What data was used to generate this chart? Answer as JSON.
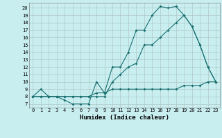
{
  "xlabel": "Humidex (Indice chaleur)",
  "bg_color": "#c8eef0",
  "grid_color": "#b0c8c8",
  "line_color": "#1a7070",
  "x_ticks": [
    0,
    1,
    2,
    3,
    4,
    5,
    6,
    7,
    8,
    9,
    10,
    11,
    12,
    13,
    14,
    15,
    16,
    17,
    18,
    19,
    20,
    21,
    22,
    23
  ],
  "y_ticks": [
    7,
    8,
    9,
    10,
    11,
    12,
    13,
    14,
    15,
    16,
    17,
    18,
    19,
    20
  ],
  "xlim": [
    -0.5,
    23.5
  ],
  "ylim": [
    6.5,
    20.7
  ],
  "line1_x": [
    0,
    1,
    2,
    3,
    4,
    5,
    6,
    7,
    8,
    9,
    10,
    11,
    12,
    13,
    14,
    15,
    16,
    17,
    18,
    19,
    20,
    21,
    22,
    23
  ],
  "line1_y": [
    8,
    9,
    8,
    8,
    7.5,
    7,
    7,
    7,
    10,
    8.5,
    12,
    12,
    14,
    17,
    17,
    19,
    20.2,
    20,
    20.2,
    19,
    17.5,
    15,
    12,
    10
  ],
  "line2_x": [
    0,
    1,
    2,
    3,
    4,
    5,
    6,
    7,
    8,
    9,
    10,
    11,
    12,
    13,
    14,
    15,
    16,
    17,
    18,
    19,
    20,
    21,
    22,
    23
  ],
  "line2_y": [
    8,
    8,
    8,
    8,
    8,
    8,
    8,
    8,
    8.5,
    8.5,
    9,
    9,
    9,
    9,
    9,
    9,
    9,
    9,
    9,
    9.5,
    9.5,
    9.5,
    10,
    10
  ],
  "line3_x": [
    0,
    1,
    2,
    3,
    4,
    5,
    6,
    7,
    8,
    9,
    10,
    11,
    12,
    13,
    14,
    15,
    16,
    17,
    18,
    19,
    20,
    21,
    22,
    23
  ],
  "line3_y": [
    8,
    8,
    8,
    8,
    8,
    8,
    8,
    8,
    8,
    8,
    10,
    11,
    12,
    12.5,
    15,
    15,
    16,
    17,
    18,
    19,
    17.5,
    15,
    12,
    10
  ]
}
